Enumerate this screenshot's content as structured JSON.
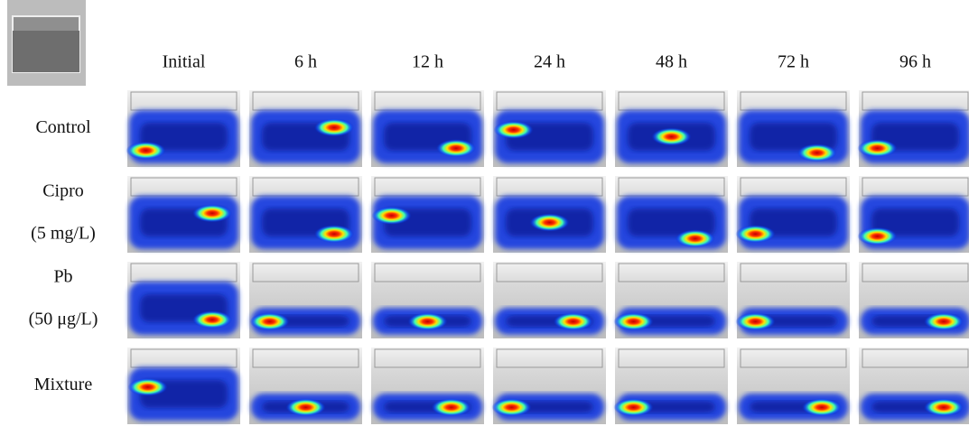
{
  "columns": [
    "Initial",
    "6 h",
    "12 h",
    "24 h",
    "48 h",
    "72 h",
    "96 h"
  ],
  "rows": [
    {
      "label": [
        "Control"
      ]
    },
    {
      "label": [
        "Cipro",
        "(5 mg/L)"
      ]
    },
    {
      "label": [
        "Pb",
        "(50 μg/L)"
      ]
    },
    {
      "label": [
        "Mixture"
      ]
    }
  ]
}
